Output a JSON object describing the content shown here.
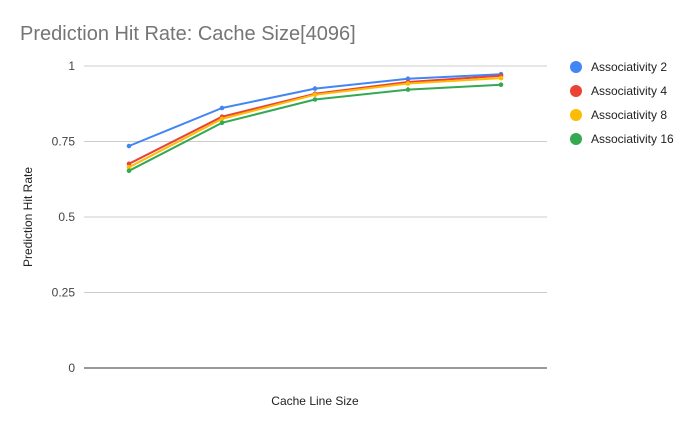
{
  "chart_data": {
    "type": "line",
    "title": "Prediction Hit Rate: Cache Size[4096]",
    "xlabel": "Cache Line Size",
    "ylabel": "Prediction Hit Rate",
    "ylim": [
      0,
      1
    ],
    "yticks": [
      "0",
      "0.25",
      "0.5",
      "0.75",
      "1"
    ],
    "grid": true,
    "legend_position": "right",
    "series": [
      {
        "name": "Associativity 2",
        "color": "#4285F4",
        "values": [
          0.735,
          0.861,
          0.925,
          0.958,
          0.973
        ]
      },
      {
        "name": "Associativity 4",
        "color": "#EA4335",
        "values": [
          0.676,
          0.832,
          0.908,
          0.947,
          0.968
        ]
      },
      {
        "name": "Associativity 8",
        "color": "#FBBC04",
        "values": [
          0.665,
          0.825,
          0.905,
          0.942,
          0.96
        ]
      },
      {
        "name": "Associativity 16",
        "color": "#34A853",
        "values": [
          0.653,
          0.812,
          0.889,
          0.922,
          0.938
        ]
      }
    ]
  }
}
